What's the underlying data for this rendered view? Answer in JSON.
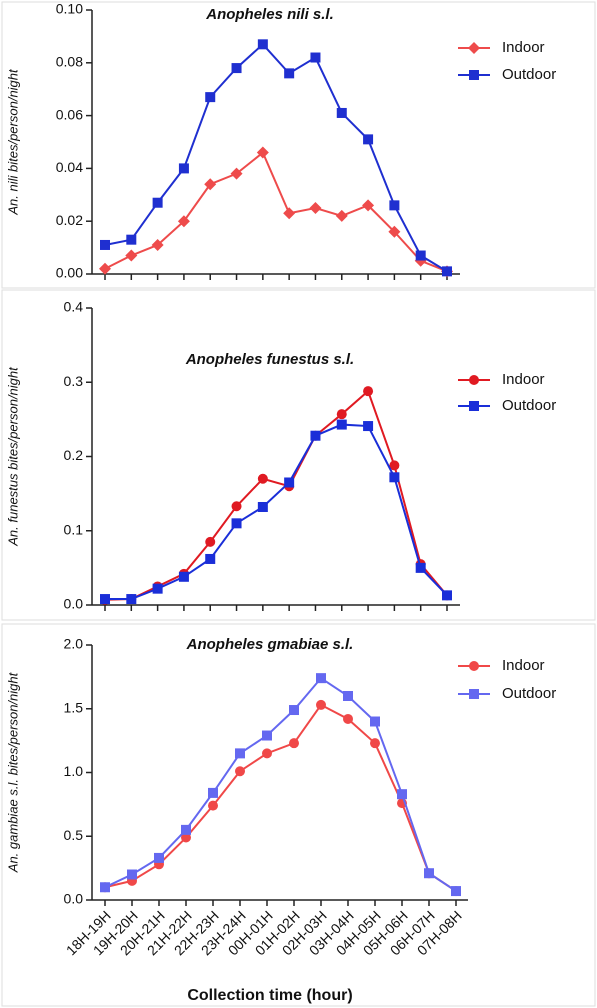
{
  "chart_data": [
    {
      "type": "line",
      "title": "Anopheles nili s.l.",
      "ylabel": "An. nili bites/person/night",
      "ylim": [
        0,
        0.1
      ],
      "yticks": [
        {
          "value": 0,
          "label": "0.00"
        },
        {
          "value": 0.02,
          "label": "0.02"
        },
        {
          "value": 0.04,
          "label": "0.04"
        },
        {
          "value": 0.06,
          "label": "0.06"
        },
        {
          "value": 0.08,
          "label": "0.08"
        },
        {
          "value": 0.1,
          "label": "0.10"
        }
      ],
      "series": [
        {
          "name": "Indoor",
          "color": "#ee4b4b",
          "marker": "diamond",
          "values": [
            0.002,
            0.007,
            0.011,
            0.02,
            0.034,
            0.038,
            0.046,
            0.023,
            0.025,
            0.022,
            0.026,
            0.016,
            0.005,
            0.001
          ]
        },
        {
          "name": "Outdoor",
          "color": "#1f2fd0",
          "marker": "square",
          "values": [
            0.011,
            0.013,
            0.027,
            0.04,
            0.067,
            0.078,
            0.087,
            0.076,
            0.082,
            0.061,
            0.051,
            0.026,
            0.007,
            0.001
          ]
        }
      ]
    },
    {
      "type": "line",
      "title": "Anopheles funestus s.l.",
      "ylabel": "An. funestus bites/person/night",
      "ylim": [
        0,
        0.4
      ],
      "yticks": [
        {
          "value": 0,
          "label": "0.0"
        },
        0.1,
        0.2,
        0.3,
        0.4
      ],
      "series": [
        {
          "name": "Indoor",
          "color": "#e01a22",
          "marker": "circle",
          "values": [
            0.007,
            0.008,
            0.025,
            0.042,
            0.085,
            0.133,
            0.17,
            0.16,
            0.228,
            0.257,
            0.288,
            0.188,
            0.055,
            0.013
          ]
        },
        {
          "name": "Outdoor",
          "color": "#1a2ed8",
          "marker": "square",
          "values": [
            0.008,
            0.008,
            0.022,
            0.038,
            0.062,
            0.11,
            0.132,
            0.165,
            0.228,
            0.243,
            0.241,
            0.172,
            0.05,
            0.013
          ]
        }
      ]
    },
    {
      "type": "line",
      "title": "Anopheles gmabiae s.l.",
      "ylabel": "An. gambiae s.l. bites/person/night",
      "xlabel": "Collection time (hour)",
      "categories": [
        "18H-19H",
        "19H-20H",
        "20H-21H",
        "21H-22H",
        "22H-23H",
        "23H-24H",
        "00H-01H",
        "01H-02H",
        "02H-03H",
        "03H-04H",
        "04H-05H",
        "05H-06H",
        "06H-07H",
        "07H-08H"
      ],
      "ylim": [
        0,
        2
      ],
      "yticks": [
        {
          "value": 0,
          "label": "0.0"
        },
        0.5,
        {
          "value": 1,
          "label": "1.0"
        },
        1.5,
        {
          "value": 2,
          "label": "2.0"
        }
      ],
      "series": [
        {
          "name": "Indoor",
          "color": "#f04848",
          "marker": "circle",
          "values": [
            0.1,
            0.15,
            0.28,
            0.49,
            0.74,
            1.01,
            1.15,
            1.23,
            1.53,
            1.42,
            1.23,
            0.76,
            0.21,
            0.07
          ]
        },
        {
          "name": "Outdoor",
          "color": "#6468f0",
          "marker": "square",
          "values": [
            0.1,
            0.2,
            0.33,
            0.55,
            0.84,
            1.15,
            1.29,
            1.49,
            1.74,
            1.6,
            1.4,
            0.83,
            0.21,
            0.07
          ]
        }
      ]
    }
  ]
}
